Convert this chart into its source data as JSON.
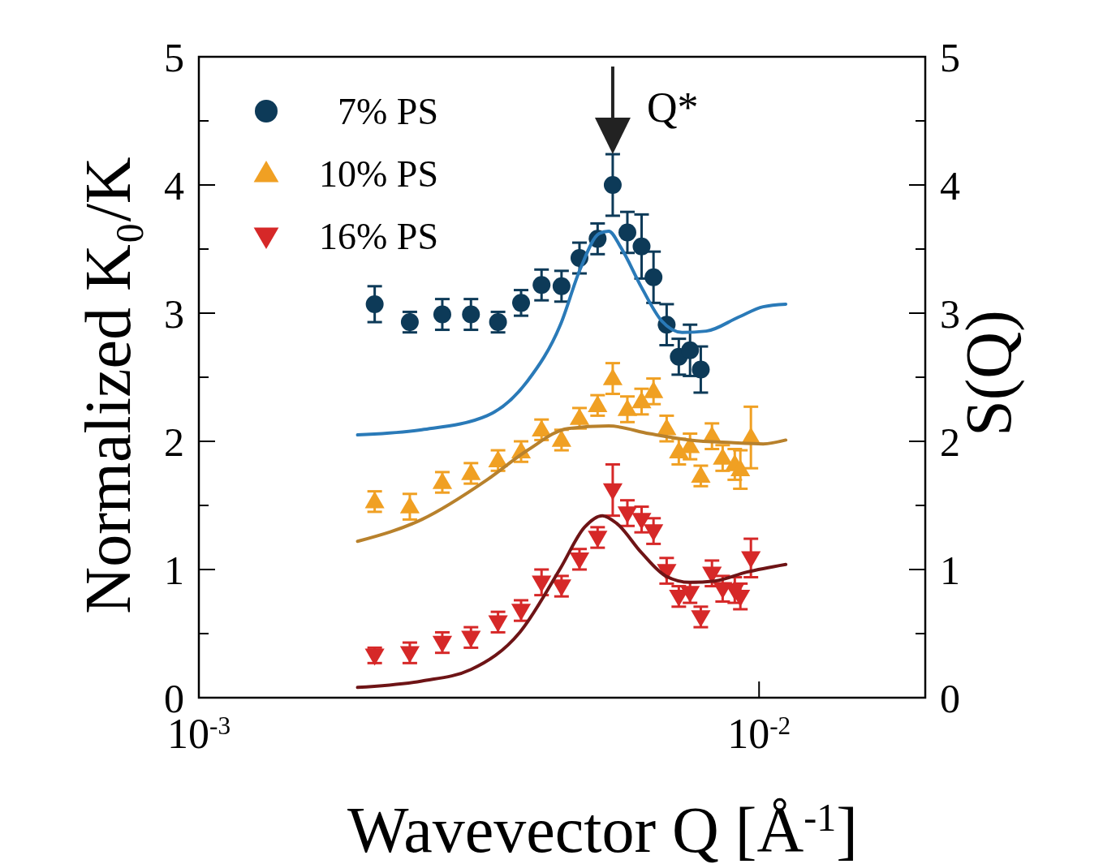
{
  "chart_data": {
    "type": "scatter",
    "xlabel": "Wavevector Q [Å$^{-1}$]",
    "ylabel": "Normalized K₀/K",
    "y2label": "S(Q)",
    "log": "x",
    "xlim": [
      0.001,
      0.0198
    ],
    "xticks": [
      {
        "value": 0.001,
        "label": "10$^{-3}$"
      },
      {
        "value": 0.01,
        "label": "10$^{-2}$"
      }
    ],
    "ylim": [
      0,
      5
    ],
    "yticks": [
      0,
      {
        "value": 0.5,
        "label": null
      },
      1,
      {
        "value": 1.5,
        "label": null
      },
      2,
      {
        "value": 2.5,
        "label": null
      },
      3,
      {
        "value": 3.5,
        "label": null
      },
      4,
      {
        "value": 4.5,
        "label": null
      },
      5
    ],
    "y2lim": [
      0,
      5
    ],
    "y2ticks": [
      0,
      {
        "value": 0.5,
        "label": null
      },
      1,
      {
        "value": 1.5,
        "label": null
      },
      2,
      {
        "value": 2.5,
        "label": null
      },
      3,
      {
        "value": 3.5,
        "label": null
      },
      4,
      {
        "value": 4.5,
        "label": null
      },
      5
    ],
    "grid": false,
    "legend": "top left",
    "annotations": [
      {
        "text": "Q*",
        "x": 0.00548,
        "y": 4.24
      }
    ],
    "series": [
      {
        "name": "7% PS",
        "marker": "circle",
        "color": "#0d3a58",
        "x": [
          0.00206,
          0.00238,
          0.00272,
          0.00306,
          0.00342,
          0.00376,
          0.00409,
          0.00444,
          0.00478,
          0.00515,
          0.00548,
          0.00582,
          0.00617,
          0.00648,
          0.00684,
          0.00719,
          0.00753,
          0.00787
        ],
        "values": [
          3.07,
          2.93,
          2.99,
          2.99,
          2.93,
          3.08,
          3.22,
          3.21,
          3.43,
          3.58,
          4.0,
          3.63,
          3.52,
          3.28,
          2.91,
          2.66,
          2.71,
          2.56
        ],
        "errors": [
          0.14,
          0.08,
          0.12,
          0.12,
          0.08,
          0.1,
          0.12,
          0.12,
          0.12,
          0.12,
          0.24,
          0.16,
          0.25,
          0.2,
          0.16,
          0.14,
          0.2,
          0.18
        ]
      },
      {
        "name": "10% PS",
        "marker": "triangle",
        "color": "#f0a023",
        "x": [
          0.00206,
          0.00238,
          0.00272,
          0.00306,
          0.00342,
          0.00376,
          0.00409,
          0.00444,
          0.00478,
          0.00515,
          0.00548,
          0.00582,
          0.00617,
          0.00648,
          0.00684,
          0.00719,
          0.00753,
          0.00787,
          0.00824,
          0.00861,
          0.00905,
          0.00926,
          0.00967
        ],
        "values": [
          1.53,
          1.49,
          1.68,
          1.75,
          1.85,
          1.92,
          2.09,
          2.01,
          2.18,
          2.28,
          2.49,
          2.25,
          2.31,
          2.39,
          2.1,
          1.92,
          1.96,
          1.73,
          2.04,
          1.87,
          1.82,
          1.78,
          2.03
        ],
        "errors": [
          0.08,
          0.1,
          0.08,
          0.08,
          0.08,
          0.08,
          0.08,
          0.08,
          0.08,
          0.08,
          0.12,
          0.1,
          0.1,
          0.1,
          0.1,
          0.1,
          0.1,
          0.08,
          0.1,
          0.1,
          0.12,
          0.15,
          0.24
        ]
      },
      {
        "name": "16% PS",
        "marker": "triangle-down",
        "color": "#d62828",
        "x": [
          0.00206,
          0.00238,
          0.00272,
          0.00306,
          0.00342,
          0.00376,
          0.00409,
          0.00444,
          0.00478,
          0.00515,
          0.00548,
          0.00582,
          0.00617,
          0.00648,
          0.00684,
          0.00719,
          0.00753,
          0.00787,
          0.00824,
          0.00861,
          0.00905,
          0.00926,
          0.00967
        ],
        "values": [
          0.33,
          0.35,
          0.43,
          0.47,
          0.59,
          0.68,
          0.9,
          0.87,
          1.08,
          1.25,
          1.62,
          1.44,
          1.39,
          1.3,
          0.99,
          0.79,
          0.82,
          0.63,
          0.97,
          0.85,
          0.84,
          0.79,
          1.09
        ],
        "errors": [
          0.06,
          0.08,
          0.08,
          0.08,
          0.08,
          0.08,
          0.1,
          0.08,
          0.08,
          0.08,
          0.2,
          0.1,
          0.1,
          0.1,
          0.1,
          0.08,
          0.08,
          0.08,
          0.1,
          0.1,
          0.1,
          0.1,
          0.15
        ]
      },
      {
        "type": "line",
        "marker": "none",
        "color": "#2a7ab8",
        "x": [
          0.00192,
          0.0025,
          0.00327,
          0.00386,
          0.00442,
          0.0048,
          0.00518,
          0.00539,
          0.00567,
          0.00617,
          0.0067,
          0.00729,
          0.00805,
          0.0092,
          0.01017,
          0.01116
        ],
        "values": [
          2.05,
          2.09,
          2.2,
          2.47,
          2.91,
          3.35,
          3.62,
          3.64,
          3.51,
          3.2,
          2.94,
          2.85,
          2.86,
          2.97,
          3.05,
          3.07
        ]
      },
      {
        "type": "line",
        "marker": "none",
        "color": "#b8812c",
        "x": [
          0.00192,
          0.0025,
          0.00327,
          0.00386,
          0.00456,
          0.00539,
          0.00637,
          0.00753,
          0.0089,
          0.01017,
          0.01116
        ],
        "values": [
          1.22,
          1.39,
          1.7,
          1.93,
          2.1,
          2.12,
          2.06,
          2.01,
          1.99,
          1.98,
          2.01
        ]
      },
      {
        "type": "line",
        "marker": "none",
        "color": "#6e1416",
        "x": [
          0.00192,
          0.0025,
          0.00306,
          0.00374,
          0.00442,
          0.00488,
          0.00525,
          0.00557,
          0.00617,
          0.00681,
          0.00753,
          0.00833,
          0.00951,
          0.01116
        ],
        "values": [
          0.08,
          0.13,
          0.22,
          0.51,
          1.01,
          1.33,
          1.42,
          1.36,
          1.13,
          0.95,
          0.9,
          0.91,
          0.98,
          1.04
        ]
      }
    ]
  }
}
